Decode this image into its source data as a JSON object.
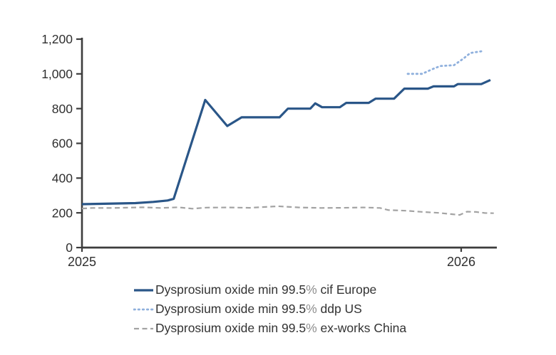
{
  "page": {
    "background": "#ffffff"
  },
  "chart_data": {
    "type": "line",
    "title": "",
    "xlabel": "",
    "ylabel": "",
    "grid": false,
    "legend_position": "bottom-left",
    "axis_color": "#3d3d3d",
    "tick_label_color": "#2f2f2f",
    "x_axis": {
      "range": [
        2025,
        2026.094
      ],
      "ticks": [
        {
          "value": 2025,
          "label": "2025"
        },
        {
          "value": 2026,
          "label": "2026"
        }
      ]
    },
    "y_axis": {
      "range": [
        0,
        1200
      ],
      "ticks": [
        {
          "value": 0,
          "label": "0"
        },
        {
          "value": 200,
          "label": "200"
        },
        {
          "value": 400,
          "label": "400"
        },
        {
          "value": 600,
          "label": "600"
        },
        {
          "value": 800,
          "label": "800"
        },
        {
          "value": 1000,
          "label": "1,000"
        },
        {
          "value": 1200,
          "label": "1,200"
        }
      ]
    },
    "series": [
      {
        "id": "ex-works-china",
        "name": "Dysprosium oxide min 99.5% ex-works China",
        "color": "#a3a3a3",
        "style": "dashed",
        "points": [
          [
            2025.0,
            225
          ],
          [
            2025.028,
            228
          ],
          [
            2025.085,
            228
          ],
          [
            2025.16,
            232
          ],
          [
            2025.207,
            228
          ],
          [
            2025.254,
            232
          ],
          [
            2025.291,
            224
          ],
          [
            2025.329,
            230
          ],
          [
            2025.385,
            231
          ],
          [
            2025.442,
            229
          ],
          [
            2025.517,
            238
          ],
          [
            2025.573,
            231
          ],
          [
            2025.63,
            228
          ],
          [
            2025.686,
            229
          ],
          [
            2025.742,
            231
          ],
          [
            2025.786,
            228
          ],
          [
            2025.808,
            216
          ],
          [
            2025.855,
            212
          ],
          [
            2025.893,
            206
          ],
          [
            2025.94,
            200
          ],
          [
            2025.972,
            193
          ],
          [
            2025.996,
            188
          ],
          [
            2026.015,
            207
          ],
          [
            2026.039,
            205
          ],
          [
            2026.062,
            199
          ],
          [
            2026.086,
            198
          ]
        ]
      },
      {
        "id": "ddp-us",
        "name": "Dysprosium oxide min 99.5% ddp US",
        "color": "#8fb0dd",
        "style": "dotted",
        "points": [
          [
            2025.859,
            1000
          ],
          [
            2025.897,
            1000
          ],
          [
            2025.925,
            1028
          ],
          [
            2025.945,
            1045
          ],
          [
            2025.981,
            1050
          ],
          [
            2026.006,
            1088
          ],
          [
            2026.024,
            1120
          ],
          [
            2026.053,
            1130
          ]
        ]
      },
      {
        "id": "cif-europe",
        "name": "Dysprosium oxide min 99.5% cif Europe",
        "color": "#2a5688",
        "style": "solid",
        "points": [
          [
            2025.0,
            250
          ],
          [
            2025.047,
            252
          ],
          [
            2025.094,
            254
          ],
          [
            2025.141,
            256
          ],
          [
            2025.188,
            263
          ],
          [
            2025.226,
            271
          ],
          [
            2025.242,
            281
          ],
          [
            2025.325,
            850
          ],
          [
            2025.383,
            700
          ],
          [
            2025.421,
            750
          ],
          [
            2025.521,
            750
          ],
          [
            2025.543,
            800
          ],
          [
            2025.602,
            800
          ],
          [
            2025.615,
            830
          ],
          [
            2025.633,
            808
          ],
          [
            2025.68,
            808
          ],
          [
            2025.697,
            833
          ],
          [
            2025.756,
            833
          ],
          [
            2025.774,
            857
          ],
          [
            2025.823,
            857
          ],
          [
            2025.85,
            915
          ],
          [
            2025.912,
            915
          ],
          [
            2025.927,
            928
          ],
          [
            2025.981,
            928
          ],
          [
            2025.991,
            941
          ],
          [
            2026.053,
            941
          ],
          [
            2026.077,
            965
          ]
        ]
      }
    ],
    "legend_order": [
      "cif-europe",
      "ddp-us",
      "ex-works-china"
    ]
  }
}
